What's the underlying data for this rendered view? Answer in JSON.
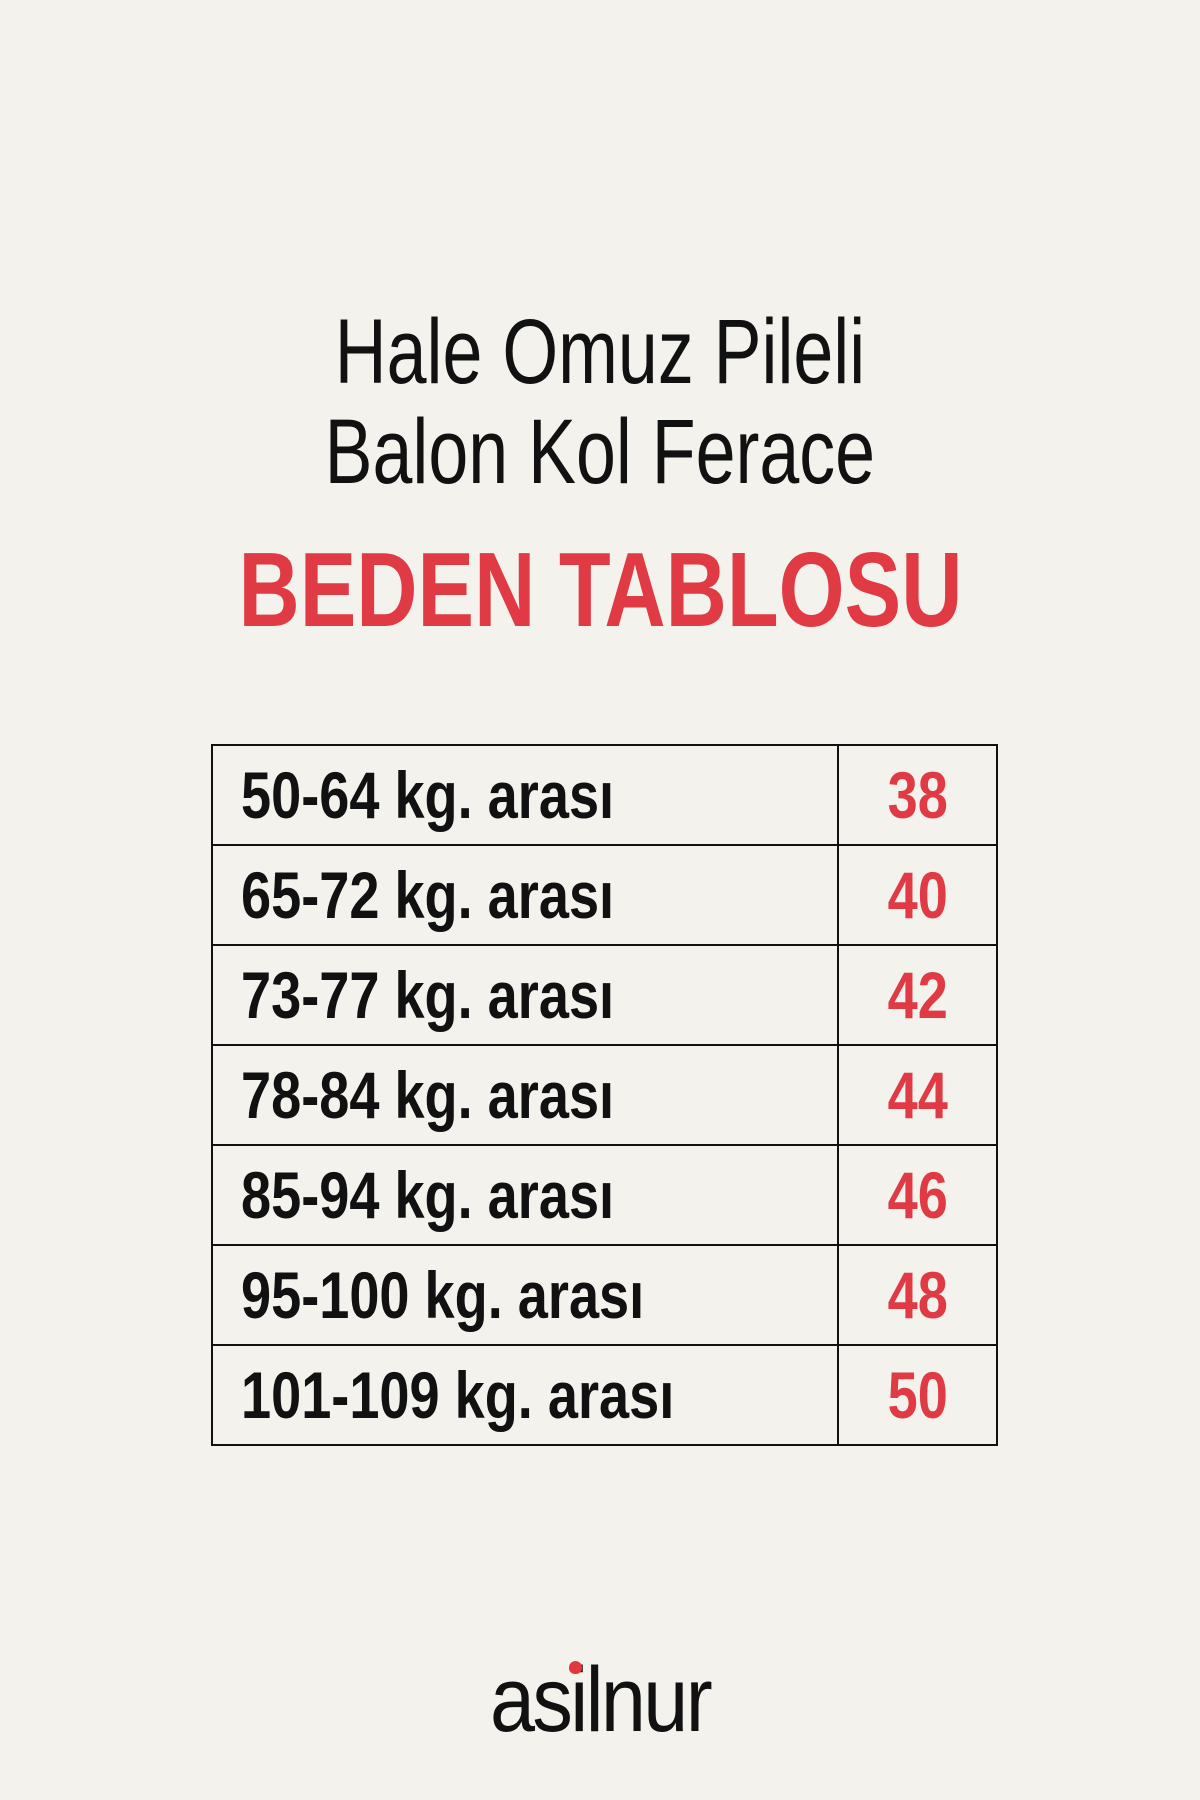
{
  "title": {
    "line1": "Hale Omuz Pileli",
    "line2": "Balon Kol Ferace"
  },
  "heading": "BEDEN TABLOSU",
  "table": {
    "rows": [
      {
        "range": "50-64 kg. arası",
        "size": "38"
      },
      {
        "range": "65-72 kg. arası",
        "size": "40"
      },
      {
        "range": "73-77 kg. arası",
        "size": "42"
      },
      {
        "range": "78-84 kg. arası",
        "size": "44"
      },
      {
        "range": "85-94 kg. arası",
        "size": "46"
      },
      {
        "range": "95-100 kg. arası",
        "size": "48"
      },
      {
        "range": "101-109 kg. arası",
        "size": "50"
      }
    ]
  },
  "brand": "asilnur",
  "colors": {
    "accent": "#e03a45",
    "background": "#f4f2ec",
    "text": "#111111"
  }
}
